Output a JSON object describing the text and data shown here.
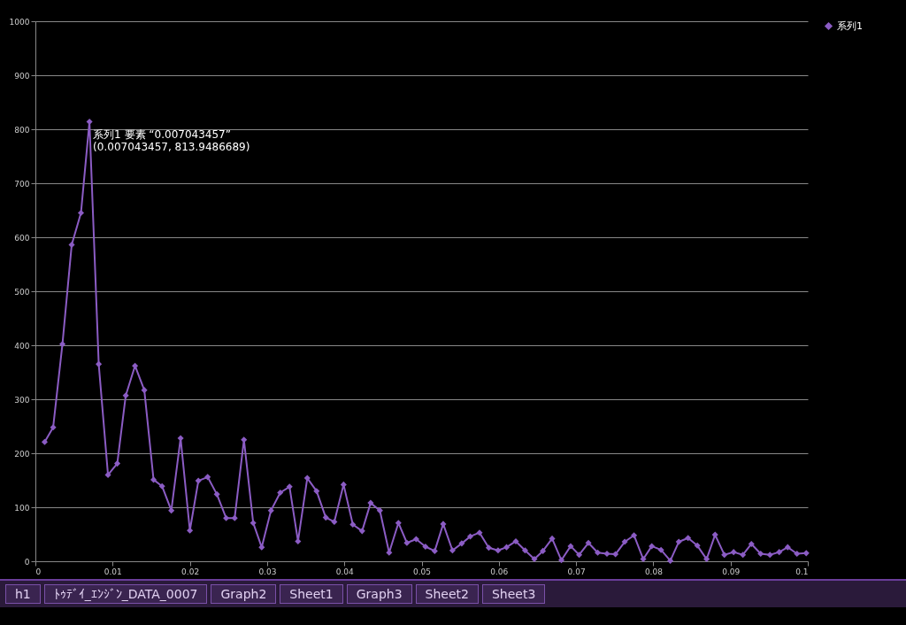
{
  "chart_data": {
    "type": "line",
    "x": [
      0.0012,
      0.0023,
      0.0035,
      0.0047,
      0.0059,
      0.007,
      0.0082,
      0.0094,
      0.0106,
      0.0117,
      0.0129,
      0.0141,
      0.0153,
      0.0164,
      0.0176,
      0.0188,
      0.02,
      0.0211,
      0.0223,
      0.0235,
      0.0247,
      0.0258,
      0.027,
      0.0282,
      0.0293,
      0.0305,
      0.0317,
      0.0329,
      0.034,
      0.0352,
      0.0364,
      0.0376,
      0.0387,
      0.0399,
      0.0411,
      0.0423,
      0.0434,
      0.0446,
      0.0458,
      0.047,
      0.0481,
      0.0493,
      0.0505,
      0.0517,
      0.0528,
      0.054,
      0.0552,
      0.0563,
      0.0575,
      0.0587,
      0.0599,
      0.061,
      0.0622,
      0.0634,
      0.0646,
      0.0657,
      0.0669,
      0.0681,
      0.0693,
      0.0704,
      0.0716,
      0.0728,
      0.074,
      0.0751,
      0.0763,
      0.0775,
      0.0787,
      0.0798,
      0.081,
      0.0822,
      0.0833,
      0.0845,
      0.0857,
      0.0869,
      0.088,
      0.0892,
      0.0904,
      0.0916,
      0.0927,
      0.0939,
      0.0951,
      0.0963,
      0.0974,
      0.0986,
      0.0998
    ],
    "series": [
      {
        "name": "系列1",
        "color": "#8b5cc4",
        "values": [
          221,
          248,
          402,
          586,
          645,
          814,
          365,
          160,
          181,
          307,
          362,
          317,
          151,
          139,
          94,
          228,
          57,
          149,
          156,
          124,
          80,
          80,
          225,
          71,
          26,
          94,
          127,
          138,
          37,
          154,
          130,
          81,
          73,
          142,
          68,
          56,
          108,
          94,
          16,
          71,
          34,
          41,
          27,
          19,
          69,
          20,
          33,
          46,
          53,
          25,
          20,
          26,
          37,
          20,
          4,
          19,
          42,
          2,
          28,
          12,
          34,
          16,
          14,
          13,
          36,
          48,
          4,
          28,
          21,
          1,
          36,
          43,
          29,
          4,
          49,
          12,
          17,
          12,
          32,
          14,
          12,
          17,
          26,
          14,
          15
        ]
      }
    ],
    "xlim": [
      0,
      0.1
    ],
    "xticks": [
      0,
      0.01,
      0.02,
      0.03,
      0.04,
      0.05,
      0.06,
      0.07,
      0.08,
      0.09,
      0.1
    ],
    "ylim": [
      0,
      1000
    ],
    "yticks": [
      0,
      100,
      200,
      300,
      400,
      500,
      600,
      700,
      800,
      900,
      1000
    ],
    "grid": "y",
    "legend": "right",
    "marker": "diamond",
    "line_style": "solid",
    "annotations": [
      {
        "text": "系列1 要素 “0.007043457”\n(0.007043457, 813.9486689)",
        "x": 0.007,
        "y": 814
      },
      "h1",
      "ﾄｩﾃﾞｲ_ｴﾝｼﾞﾝ_DATA_0007",
      "Graph2",
      "Sheet1",
      "Graph3",
      "Sheet2",
      "Sheet3"
    ]
  }
}
